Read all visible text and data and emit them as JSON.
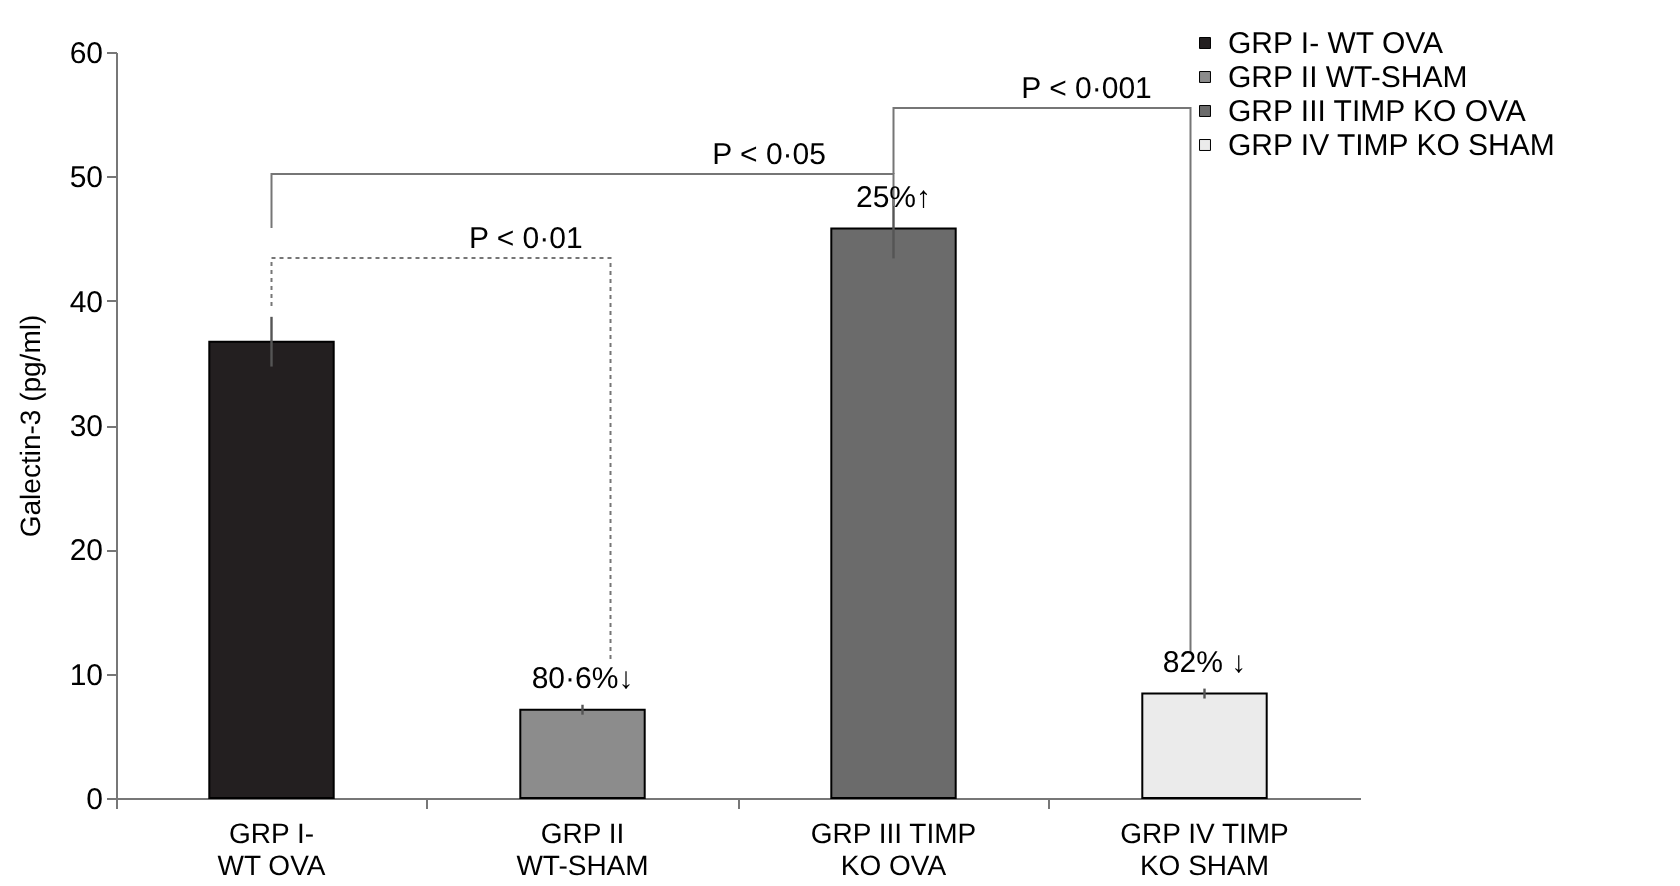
{
  "chart_data": {
    "type": "bar",
    "ylabel": "Galectin-3 (pg/ml)",
    "categories": [
      "GRP I-\nWT OVA",
      "GRP II\nWT-SHAM",
      "GRP III TIMP\nKO OVA",
      "GRP IV TIMP\nKO SHAM"
    ],
    "series": [
      {
        "name": "GRP I- WT OVA",
        "color": "#231f20",
        "values": [
          36.7,
          null,
          null,
          null
        ],
        "errors": [
          2.0,
          null,
          null,
          null
        ]
      },
      {
        "name": "GRP II WT-SHAM",
        "color": "#8c8c8c",
        "values": [
          null,
          7.1,
          null,
          null
        ],
        "errors": [
          null,
          0.4,
          null,
          null
        ]
      },
      {
        "name": "GRP III TIMP KO OVA",
        "color": "#6b6b6b",
        "values": [
          null,
          null,
          45.8,
          null
        ],
        "errors": [
          null,
          null,
          2.4,
          null
        ]
      },
      {
        "name": "GRP IV TIMP KO SHAM",
        "color": "#ebebeb",
        "values": [
          null,
          null,
          null,
          8.4
        ],
        "errors": [
          null,
          null,
          null,
          0.4
        ]
      }
    ],
    "ylim": [
      0,
      60
    ],
    "yticks": [
      0,
      10,
      20,
      30,
      40,
      50,
      60
    ],
    "grid": false,
    "legend": "top right",
    "annotations": [
      {
        "text": "80·6%↓",
        "x": "GRP II\nWT-SHAM",
        "y": 7.1
      },
      {
        "text": "25%↑",
        "x": "GRP III TIMP\nKO OVA",
        "y": 45.8
      },
      {
        "text": "82% ↓",
        "x": "GRP IV TIMP\nKO SHAM",
        "y": 8.4
      },
      "P < 0·05",
      "P < 0·01",
      "P < 0·001"
    ]
  }
}
